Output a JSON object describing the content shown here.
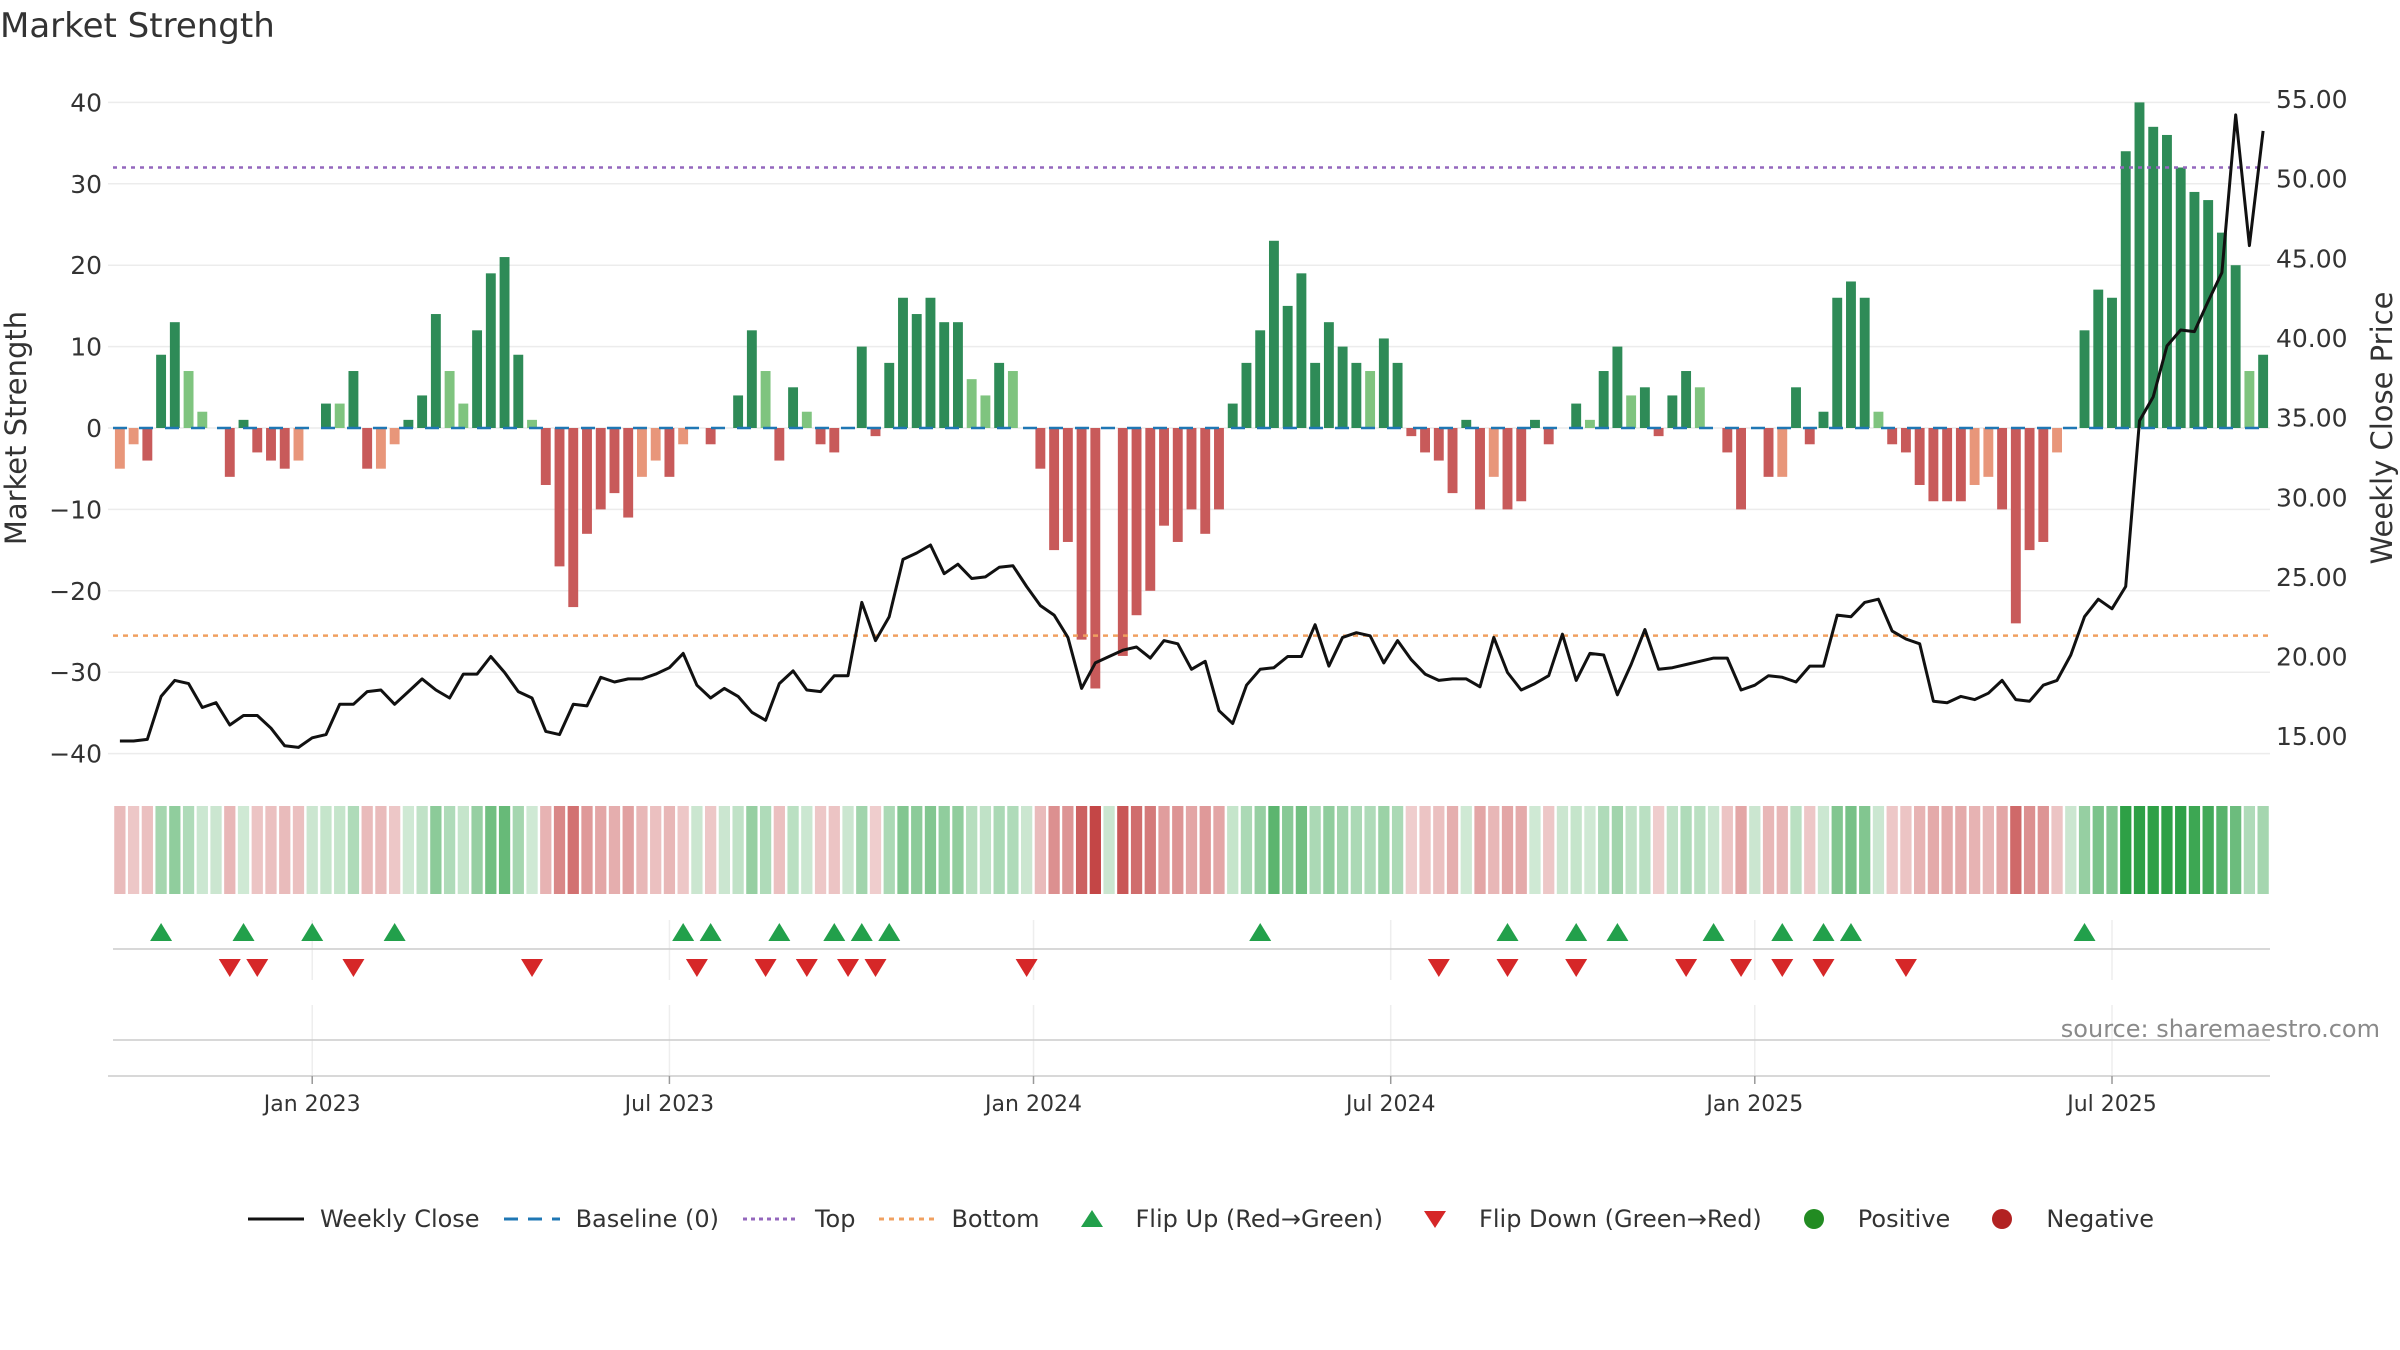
{
  "title": "Market Strength",
  "source": "source: sharemaestro.com",
  "colors": {
    "pos_dark": "#2e8b57",
    "pos_light": "#7fc47f",
    "neg_dark": "#c85a5a",
    "neg_light": "#e8967a",
    "close_line": "#111111",
    "baseline": "#1f77b4",
    "top_line": "#9467bd",
    "bottom_line": "#f0a060",
    "flip_up": "#22a04b",
    "flip_down": "#d62728",
    "positive": "#228b22",
    "negative": "#b22222"
  },
  "legend": [
    {
      "key": "close",
      "label": "Weekly Close"
    },
    {
      "key": "baseline",
      "label": "Baseline (0)"
    },
    {
      "key": "top",
      "label": "Top"
    },
    {
      "key": "bottom",
      "label": "Bottom"
    },
    {
      "key": "flip_up",
      "label": "Flip Up (Red→Green)"
    },
    {
      "key": "flip_down",
      "label": "Flip Down (Green→Red)"
    },
    {
      "key": "positive",
      "label": "Positive"
    },
    {
      "key": "negative",
      "label": "Negative"
    }
  ],
  "chart_data": {
    "type": "bar",
    "ylabel": "Market Strength",
    "y2label": "Weekly Close Price",
    "ylim": [
      -42,
      42
    ],
    "yticks": [
      -40,
      -30,
      -20,
      -10,
      0,
      10,
      20,
      30,
      40
    ],
    "y2lim": [
      12.5,
      57.5
    ],
    "y2ticks": [
      "15.00",
      "20.00",
      "25.00",
      "30.00",
      "35.00",
      "40.00",
      "45.00",
      "50.00",
      "55.00"
    ],
    "top_level": 32,
    "bottom_level": -25.5,
    "baseline": 0,
    "x_ticks": [
      {
        "label": "Jan 2023",
        "week": 14
      },
      {
        "label": "Jul 2023",
        "week": 40
      },
      {
        "label": "Jan 2024",
        "week": 66.5
      },
      {
        "label": "Jul 2024",
        "week": 92.5
      },
      {
        "label": "Jan 2025",
        "week": 119
      },
      {
        "label": "Jul 2025",
        "week": 145
      }
    ],
    "series": [
      {
        "name": "Market Strength",
        "values": [
          -5,
          -2,
          -4,
          9,
          13,
          7,
          2,
          0,
          -6,
          1,
          -3,
          -4,
          -5,
          -4,
          0,
          3,
          3,
          7,
          -5,
          -5,
          -2,
          1,
          4,
          14,
          7,
          3,
          12,
          19,
          21,
          9,
          1,
          -7,
          -17,
          -22,
          -13,
          -10,
          -8,
          -11,
          -6,
          -4,
          -6,
          -2,
          0,
          -2,
          0,
          4,
          12,
          7,
          -4,
          5,
          2,
          -2,
          -3,
          0,
          10,
          -1,
          8,
          16,
          14,
          16,
          13,
          13,
          6,
          4,
          8,
          7,
          0,
          -5,
          -15,
          -14,
          -26,
          -32,
          0,
          -28,
          -23,
          -20,
          -12,
          -14,
          -10,
          -13,
          -10,
          3,
          8,
          12,
          23,
          15,
          19,
          8,
          13,
          10,
          8,
          7,
          11,
          8,
          -1,
          -3,
          -4,
          -8,
          1,
          -10,
          -6,
          -10,
          -9,
          1,
          -2,
          0,
          3,
          1,
          7,
          10,
          4,
          5,
          -1,
          4,
          7,
          5,
          0,
          -3,
          -10,
          0,
          -6,
          -6,
          5,
          -2,
          2,
          16,
          18,
          16,
          2,
          -2,
          -3,
          -7,
          -9,
          -9,
          -9,
          -7,
          -6,
          -10,
          -24,
          -15,
          -14,
          -3,
          0,
          12,
          17,
          16,
          34,
          40,
          37,
          36,
          32,
          29,
          28,
          24,
          20,
          7,
          9
        ]
      },
      {
        "name": "Weekly Close",
        "values": [
          14.7,
          14.7,
          14.8,
          17.5,
          18.5,
          18.3,
          16.8,
          17.1,
          15.7,
          16.3,
          16.3,
          15.5,
          14.4,
          14.3,
          14.9,
          15.1,
          17.0,
          17.0,
          17.8,
          17.9,
          17.0,
          17.8,
          18.6,
          17.9,
          17.4,
          18.9,
          18.9,
          20.0,
          19.0,
          17.8,
          17.4,
          15.3,
          15.1,
          17.0,
          16.9,
          18.7,
          18.4,
          18.6,
          18.6,
          18.9,
          19.3,
          20.2,
          18.2,
          17.4,
          18.0,
          17.5,
          16.5,
          16.0,
          18.3,
          19.1,
          17.9,
          17.8,
          18.8,
          18.8,
          23.4,
          21.0,
          22.5,
          26.1,
          26.5,
          27.0,
          25.2,
          25.8,
          24.9,
          25.0,
          25.6,
          25.7,
          24.4,
          23.2,
          22.6,
          21.2,
          18.0,
          19.6,
          20.0,
          20.4,
          20.6,
          19.9,
          21.0,
          20.8,
          19.2,
          19.7,
          16.6,
          15.8,
          18.2,
          19.2,
          19.3,
          20.0,
          20.0,
          22.0,
          19.4,
          21.2,
          21.5,
          21.3,
          19.6,
          21.0,
          19.8,
          18.9,
          18.5,
          18.6,
          18.6,
          18.1,
          21.2,
          19.0,
          17.9,
          18.3,
          18.8,
          21.4,
          18.5,
          20.2,
          20.1,
          17.6,
          19.5,
          21.7,
          19.2,
          19.3,
          19.5,
          19.7,
          19.9,
          19.9,
          17.9,
          18.2,
          18.8,
          18.7,
          18.4,
          19.4,
          19.4,
          22.6,
          22.5,
          23.4,
          23.6,
          21.6,
          21.1,
          20.8,
          17.2,
          17.1,
          17.5,
          17.3,
          17.7,
          18.5,
          17.3,
          17.2,
          18.2,
          18.5,
          20.1,
          22.5,
          23.6,
          23.0,
          24.4,
          34.8,
          36.3,
          39.5,
          40.5,
          40.4,
          42.3,
          44.1,
          54.0,
          45.8,
          53.0
        ]
      },
      {
        "name": "Flip Up (Red→Green)",
        "weeks": [
          3,
          9,
          14,
          20,
          41,
          43,
          48,
          52,
          54,
          56,
          83,
          101,
          106,
          109,
          116,
          121,
          124,
          126,
          143
        ]
      },
      {
        "name": "Flip Down (Green→Red)",
        "weeks": [
          8,
          10,
          17,
          30,
          42,
          47,
          50,
          53,
          55,
          66,
          96,
          101,
          106,
          114,
          118,
          121,
          124,
          130
        ]
      }
    ]
  }
}
